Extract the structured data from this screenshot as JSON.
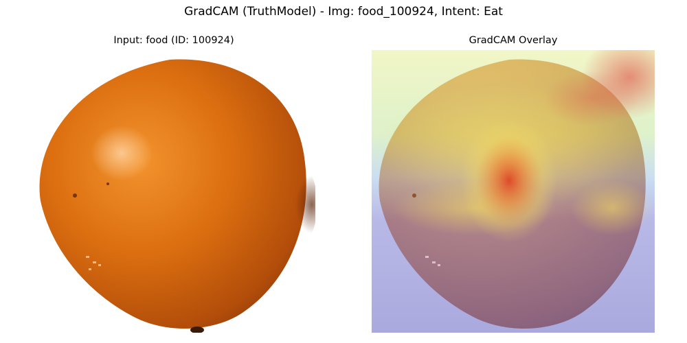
{
  "figure": {
    "suptitle": "GradCAM (TruthModel) - Img: food_100924, Intent: Eat"
  },
  "panels": [
    {
      "title": "Input: food (ID: 100924)",
      "content": "photo of an orange round fruit on a white background"
    },
    {
      "title": "GradCAM Overlay",
      "content": "same photo with a jet-colormap heatmap overlay"
    }
  ],
  "colors": {
    "fruit_base": "#d86a0c",
    "fruit_highlight": "#f4a04a",
    "fruit_shadow": "#8c3a0a",
    "background": "#ffffff",
    "heatmap_low": "#6a6ad0",
    "heatmap_mid": "#f0e070",
    "heatmap_high": "#e0401e"
  }
}
